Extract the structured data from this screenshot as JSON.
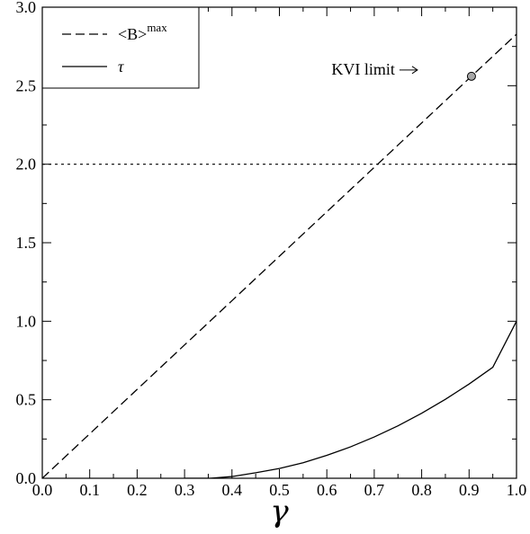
{
  "chart_data": {
    "type": "line",
    "xlabel": "γ",
    "ylabel": "",
    "title": "",
    "xlim": [
      0.0,
      1.0
    ],
    "ylim": [
      0.0,
      3.0
    ],
    "xticks": [
      "0.0",
      "0.1",
      "0.2",
      "0.3",
      "0.4",
      "0.5",
      "0.6",
      "0.7",
      "0.8",
      "0.9",
      "1.0"
    ],
    "yticks": [
      "0.0",
      "0.5",
      "1.0",
      "1.5",
      "2.0",
      "2.5",
      "3.0"
    ],
    "grid": false,
    "legend_position": "top-left",
    "series": [
      {
        "name": "<B>",
        "name_superscript": "max",
        "style": "dashed",
        "x": [
          0.0,
          0.1,
          0.2,
          0.3,
          0.4,
          0.5,
          0.6,
          0.7,
          0.8,
          0.9,
          1.0
        ],
        "y": [
          0.0,
          0.283,
          0.566,
          0.849,
          1.131,
          1.414,
          1.697,
          1.98,
          2.263,
          2.546,
          2.828
        ]
      },
      {
        "name": "τ",
        "style": "solid",
        "x": [
          0.3,
          0.354,
          0.4,
          0.45,
          0.5,
          0.55,
          0.6,
          0.65,
          0.7,
          0.75,
          0.8,
          0.85,
          0.9,
          0.95,
          1.0
        ],
        "y": [
          0.0,
          0.0,
          0.011,
          0.035,
          0.062,
          0.099,
          0.146,
          0.2,
          0.263,
          0.334,
          0.414,
          0.503,
          0.6,
          0.707,
          1.0
        ]
      }
    ],
    "reference_lines": [
      {
        "orientation": "horizontal",
        "y": 2.0,
        "style": "dotted"
      }
    ],
    "annotations": [
      {
        "text": "KVI limit",
        "x": 0.905,
        "y": 2.56,
        "marker": "circle",
        "arrow": true
      }
    ]
  }
}
